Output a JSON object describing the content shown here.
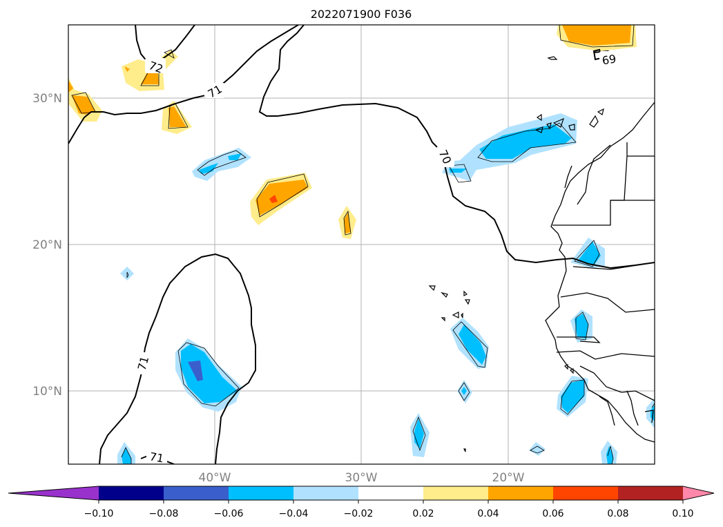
{
  "title": "2022071900 F036",
  "lat_labels": [
    "30°N",
    "20°N",
    "10°N"
  ],
  "lon_labels": [
    "40°W",
    "30°W",
    "20°W"
  ],
  "contour_labels": [
    "72",
    "71",
    "70",
    "69",
    "71",
    "71"
  ],
  "colorbar": {
    "tick_labels": [
      "−0.10",
      "−0.08",
      "−0.06",
      "−0.04",
      "−0.02",
      "0.02",
      "0.04",
      "0.06",
      "0.08",
      "0.10"
    ],
    "colors": [
      "#9932cc",
      "#00008b",
      "#3a5fcd",
      "#00bfff",
      "#b0e2ff",
      "#ffffff",
      "#ffec8b",
      "#ffa500",
      "#ff4500",
      "#b22222",
      "#ff88aa"
    ],
    "extend": "both"
  },
  "colors": {
    "land_outline": "#000000",
    "grid": "#b0b0b0",
    "frame": "#000000"
  }
}
